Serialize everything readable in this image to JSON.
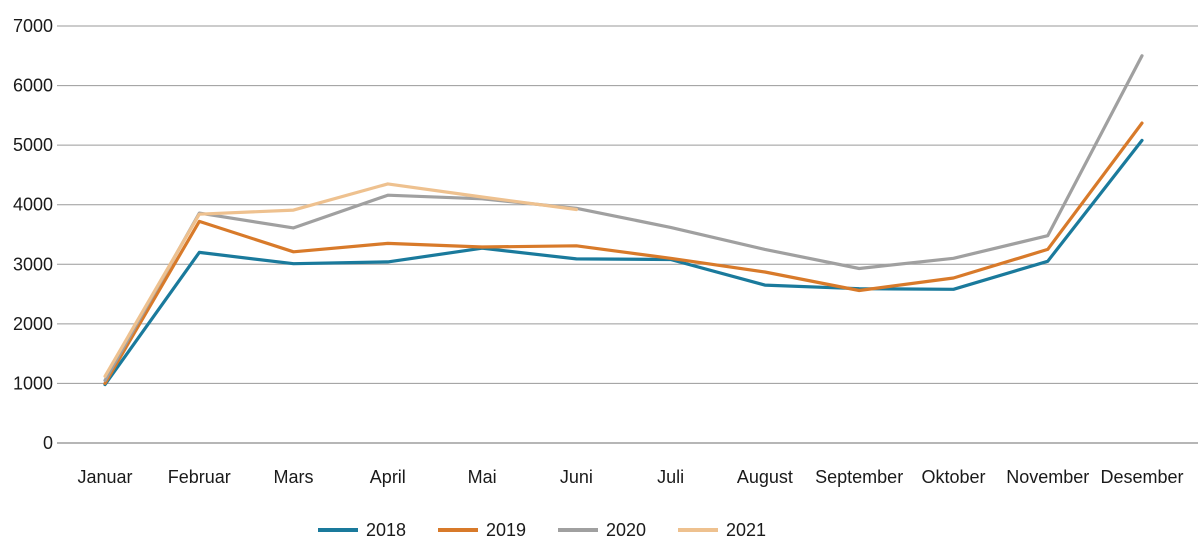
{
  "chart_data": {
    "type": "line",
    "title": "",
    "xlabel": "",
    "ylabel": "",
    "ylim": [
      0,
      7000
    ],
    "yticks": [
      0,
      1000,
      2000,
      3000,
      4000,
      5000,
      6000,
      7000
    ],
    "grid": true,
    "legend_position": "bottom",
    "categories": [
      "Januar",
      "Februar",
      "Mars",
      "April",
      "Mai",
      "Juni",
      "Juli",
      "August",
      "September",
      "Oktober",
      "November",
      "Desember"
    ],
    "series": [
      {
        "name": "2018",
        "color": "#1a7a9c",
        "values": [
          980,
          3200,
          3010,
          3040,
          3270,
          3090,
          3080,
          2650,
          2590,
          2580,
          3050,
          5080
        ]
      },
      {
        "name": "2019",
        "color": "#d87a2a",
        "values": [
          1000,
          3720,
          3210,
          3350,
          3290,
          3310,
          3100,
          2870,
          2560,
          2770,
          3250,
          5370
        ]
      },
      {
        "name": "2020",
        "color": "#a0a0a0",
        "values": [
          1050,
          3860,
          3610,
          4160,
          4100,
          3940,
          3620,
          3250,
          2930,
          3100,
          3480,
          6500
        ]
      },
      {
        "name": "2021",
        "color": "#eec18f",
        "values": [
          1120,
          3840,
          3910,
          4350,
          4130,
          3920,
          null,
          null,
          null,
          null,
          null,
          null
        ]
      }
    ]
  }
}
